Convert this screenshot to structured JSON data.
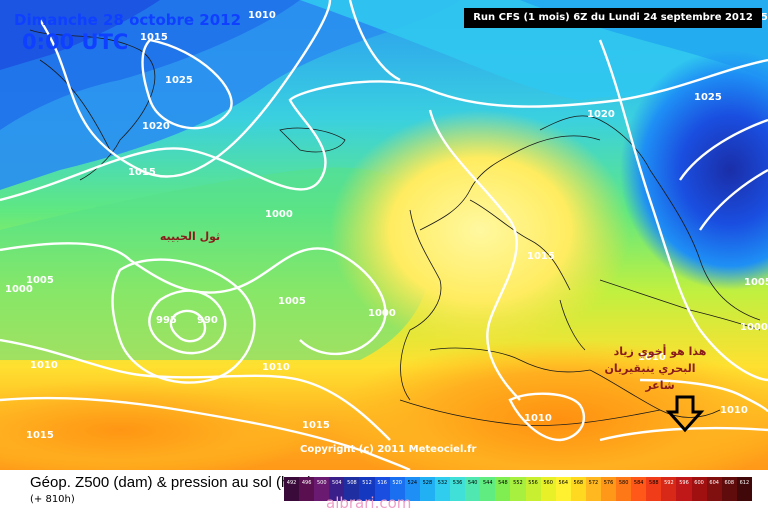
{
  "map": {
    "title_date": "Dimanche 28 octobre 2012",
    "title_time": "0:00 UTC",
    "run_info": "Run CFS (1 mois) 6Z du Lundi 24 septembre 2012",
    "copyright": "Copyright (c) 2011 Meteociel.fr",
    "isobar_labels": [
      "1010",
      "1015",
      "1025",
      "1020",
      "1015",
      "1000",
      "1005",
      "1000",
      "995",
      "990",
      "1005",
      "1000",
      "1010",
      "1010",
      "1015",
      "1015",
      "1015",
      "1020",
      "1025",
      "1010",
      "1010",
      "1010",
      "1015",
      "1005",
      "1000"
    ],
    "annotations": {
      "low_label": "ثول الحبيبه",
      "east_note_1": "هذا هو أخوي زياد",
      "east_note_2": "البحري ينبقيريان",
      "east_note_3": "شاعر"
    },
    "arrow_icon": "down-arrow-icon"
  },
  "legend": {
    "title": "Géop. Z500 (dam) & pression au sol (hPa)",
    "subtitle": "(+ 810h)",
    "scale_values": [
      "492",
      "496",
      "500",
      "504",
      "508",
      "512",
      "516",
      "520",
      "524",
      "528",
      "532",
      "536",
      "540",
      "544",
      "548",
      "552",
      "556",
      "560",
      "564",
      "568",
      "572",
      "576",
      "580",
      "584",
      "588",
      "592",
      "596",
      "600",
      "604",
      "608",
      "612"
    ],
    "scale_colors": [
      "#3a0a3a",
      "#5a1050",
      "#6a1a70",
      "#3a1e8a",
      "#1f2ea0",
      "#1438c0",
      "#1a4ee0",
      "#1a6ef0",
      "#1e90f5",
      "#22b0f5",
      "#30cdee",
      "#40e0d8",
      "#50e8b0",
      "#60ec80",
      "#80ee50",
      "#a8f040",
      "#c8f030",
      "#e8f028",
      "#fff030",
      "#ffd820",
      "#ffb820",
      "#ff9818",
      "#ff7818",
      "#ff5818",
      "#f03c18",
      "#d82818",
      "#c01818",
      "#a01010",
      "#801010",
      "#600c0c",
      "#400808"
    ],
    "watermark": "albrari.com"
  }
}
